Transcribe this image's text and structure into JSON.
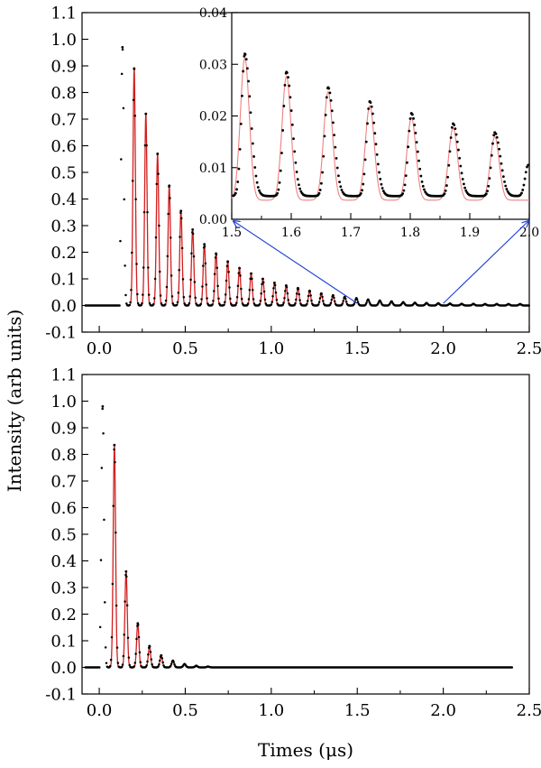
{
  "chart_data": [
    {
      "type": "scatter",
      "panel": "top",
      "xlim": [
        -0.1,
        2.5
      ],
      "ylim": [
        -0.1,
        1.1
      ],
      "x_ticks": [
        "0.0",
        "0.5",
        "1.0",
        "1.5",
        "2.0",
        "2.5"
      ],
      "y_ticks": [
        "-0.1",
        "0.0",
        "0.1",
        "0.2",
        "0.3",
        "0.4",
        "0.5",
        "0.6",
        "0.7",
        "0.8",
        "0.9",
        "1.0",
        "1.1"
      ],
      "baseline": 0.0,
      "onset": 0.12,
      "first_peak": {
        "x": 0.135,
        "y": 0.97
      },
      "peak_spacing": 0.068,
      "peaks_y": [
        0.89,
        0.72,
        0.57,
        0.45,
        0.355,
        0.285,
        0.23,
        0.195,
        0.165,
        0.14,
        0.12,
        0.1,
        0.085,
        0.075,
        0.065,
        0.055,
        0.045,
        0.038,
        0.032,
        0.027,
        0.022,
        0.018,
        0.015,
        0.012,
        0.01,
        0.009,
        0.008,
        0.007,
        0.006,
        0.006,
        0.005,
        0.005,
        0.005,
        0.005
      ],
      "series": [
        {
          "style": "black-points",
          "color": "#000000"
        },
        {
          "style": "red-fit-line",
          "color": "#d21e1e"
        }
      ]
    },
    {
      "type": "scatter",
      "panel": "inset",
      "xlim": [
        1.5,
        2.0
      ],
      "ylim": [
        0.0,
        0.04
      ],
      "x_ticks": [
        "1.5",
        "1.6",
        "1.7",
        "1.8",
        "1.9",
        "2.0"
      ],
      "y_ticks": [
        "0.00",
        "0.01",
        "0.02",
        "0.03",
        "0.04"
      ],
      "baseline": 0.0045,
      "peaks": [
        {
          "x": 1.522,
          "y": 0.032
        },
        {
          "x": 1.592,
          "y": 0.0285
        },
        {
          "x": 1.662,
          "y": 0.0255
        },
        {
          "x": 1.732,
          "y": 0.0228
        },
        {
          "x": 1.802,
          "y": 0.0205
        },
        {
          "x": 1.872,
          "y": 0.0185
        },
        {
          "x": 1.942,
          "y": 0.0168
        }
      ],
      "end_rise": {
        "x": 1.998,
        "y": 0.0105
      },
      "series": [
        {
          "style": "black-points",
          "color": "#000000"
        },
        {
          "style": "red-fit-line",
          "color": "#f08080"
        }
      ],
      "zoom_connector_color": "#1f3fd6"
    },
    {
      "type": "scatter",
      "panel": "bottom",
      "xlim": [
        -0.1,
        2.5
      ],
      "ylim": [
        -0.1,
        1.1
      ],
      "x_ticks": [
        "0.0",
        "0.5",
        "1.0",
        "1.5",
        "2.0",
        "2.5"
      ],
      "y_ticks": [
        "-0.1",
        "0.0",
        "0.1",
        "0.2",
        "0.3",
        "0.4",
        "0.5",
        "0.6",
        "0.7",
        "0.8",
        "0.9",
        "1.0",
        "1.1"
      ],
      "baseline": 0.0,
      "onset": 0.005,
      "first_peak": {
        "x": 0.02,
        "y": 0.98
      },
      "peak_spacing": 0.068,
      "peaks_y": [
        0.835,
        0.36,
        0.165,
        0.08,
        0.045,
        0.025,
        0.012,
        0.006,
        0.003
      ],
      "data_end": 2.4,
      "series": [
        {
          "style": "black-points",
          "color": "#000000"
        },
        {
          "style": "red-fit-line",
          "color": "#d21e1e"
        }
      ]
    }
  ],
  "labels": {
    "ylabel": "Intensity (arb units)",
    "xlabel": "Times (μs)"
  }
}
